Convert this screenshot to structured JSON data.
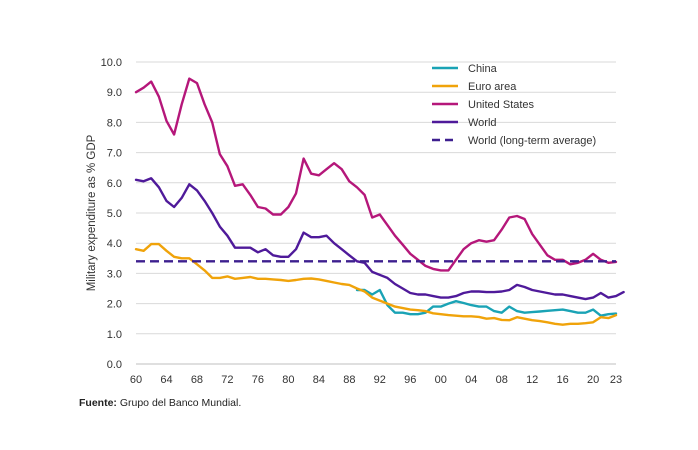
{
  "source": {
    "label": "Fuente:",
    "text": "Grupo del Banco Mundial."
  },
  "chart_data": {
    "type": "line",
    "title": "",
    "xlabel": "",
    "ylabel": "Military expenditure as % GDP",
    "ylim": [
      0,
      10
    ],
    "yticks": [
      "0.0",
      "1.0",
      "2.0",
      "3.0",
      "4.0",
      "5.0",
      "6.0",
      "7.0",
      "8.0",
      "9.0",
      "10.0"
    ],
    "xlim": [
      1960,
      2023
    ],
    "xticks": [
      {
        "year": 1960,
        "label": "60"
      },
      {
        "year": 1964,
        "label": "64"
      },
      {
        "year": 1968,
        "label": "68"
      },
      {
        "year": 1972,
        "label": "72"
      },
      {
        "year": 1976,
        "label": "76"
      },
      {
        "year": 1980,
        "label": "80"
      },
      {
        "year": 1984,
        "label": "84"
      },
      {
        "year": 1988,
        "label": "88"
      },
      {
        "year": 1992,
        "label": "92"
      },
      {
        "year": 1996,
        "label": "96"
      },
      {
        "year": 2000,
        "label": "00"
      },
      {
        "year": 2004,
        "label": "04"
      },
      {
        "year": 2008,
        "label": "08"
      },
      {
        "year": 2012,
        "label": "12"
      },
      {
        "year": 2016,
        "label": "16"
      },
      {
        "year": 2020,
        "label": "20"
      },
      {
        "year": 2023,
        "label": "23"
      }
    ],
    "grid": true,
    "legend_position": "top-right",
    "series": [
      {
        "name": "China",
        "color": "#1aa3b5",
        "dash": false,
        "start": 1989,
        "values": [
          2.45,
          2.45,
          2.3,
          2.45,
          1.95,
          1.7,
          1.7,
          1.65,
          1.65,
          1.7,
          1.9,
          1.9,
          2.0,
          2.08,
          2.02,
          1.95,
          1.9,
          1.9,
          1.75,
          1.7,
          1.9,
          1.75,
          1.7,
          1.72,
          1.74,
          1.76,
          1.78,
          1.8,
          1.75,
          1.7,
          1.7,
          1.8,
          1.6,
          1.65,
          1.67
        ]
      },
      {
        "name": "Euro area",
        "color": "#f0a30a",
        "dash": false,
        "start": 1960,
        "values": [
          3.8,
          3.75,
          3.97,
          3.97,
          3.75,
          3.55,
          3.5,
          3.5,
          3.3,
          3.1,
          2.85,
          2.85,
          2.9,
          2.82,
          2.85,
          2.88,
          2.82,
          2.82,
          2.8,
          2.78,
          2.75,
          2.78,
          2.82,
          2.83,
          2.8,
          2.75,
          2.7,
          2.65,
          2.62,
          2.5,
          2.4,
          2.2,
          2.1,
          2.0,
          1.9,
          1.85,
          1.8,
          1.78,
          1.75,
          1.68,
          1.65,
          1.62,
          1.6,
          1.58,
          1.58,
          1.56,
          1.5,
          1.52,
          1.46,
          1.45,
          1.55,
          1.5,
          1.45,
          1.42,
          1.38,
          1.33,
          1.3,
          1.33,
          1.33,
          1.35,
          1.38,
          1.55,
          1.52,
          1.62
        ]
      },
      {
        "name": "United States",
        "color": "#b5177a",
        "dash": false,
        "start": 1960,
        "values": [
          9.0,
          9.15,
          9.35,
          8.85,
          8.05,
          7.6,
          8.6,
          9.45,
          9.3,
          8.6,
          8.0,
          6.95,
          6.55,
          5.9,
          5.95,
          5.6,
          5.2,
          5.15,
          4.95,
          4.95,
          5.2,
          5.65,
          6.8,
          6.3,
          6.25,
          6.45,
          6.65,
          6.45,
          6.05,
          5.85,
          5.6,
          4.85,
          4.95,
          4.6,
          4.25,
          3.95,
          3.65,
          3.45,
          3.25,
          3.15,
          3.1,
          3.1,
          3.45,
          3.8,
          4.0,
          4.1,
          4.05,
          4.1,
          4.45,
          4.85,
          4.9,
          4.8,
          4.3,
          3.95,
          3.6,
          3.45,
          3.45,
          3.3,
          3.35,
          3.45,
          3.65,
          3.45,
          3.35,
          3.38
        ]
      },
      {
        "name": "World",
        "color": "#4f1a9a",
        "dash": false,
        "start": 1960,
        "values": [
          6.1,
          6.05,
          6.15,
          5.85,
          5.4,
          5.2,
          5.5,
          5.95,
          5.75,
          5.4,
          5.0,
          4.55,
          4.25,
          3.85,
          3.85,
          3.85,
          3.7,
          3.8,
          3.6,
          3.55,
          3.55,
          3.8,
          4.35,
          4.2,
          4.2,
          4.25,
          4.0,
          3.8,
          3.6,
          3.4,
          3.35,
          3.05,
          2.95,
          2.85,
          2.65,
          2.5,
          2.35,
          2.3,
          2.3,
          2.25,
          2.2,
          2.2,
          2.25,
          2.35,
          2.4,
          2.4,
          2.38,
          2.38,
          2.4,
          2.45,
          2.62,
          2.55,
          2.45,
          2.4,
          2.35,
          2.3,
          2.3,
          2.25,
          2.2,
          2.15,
          2.2,
          2.35,
          2.2,
          2.25,
          2.38
        ]
      },
      {
        "name": "World (long-term average)",
        "color": "#3d1f8f",
        "dash": true,
        "start": 1960,
        "values": [
          3.4,
          3.4
        ]
      }
    ]
  }
}
